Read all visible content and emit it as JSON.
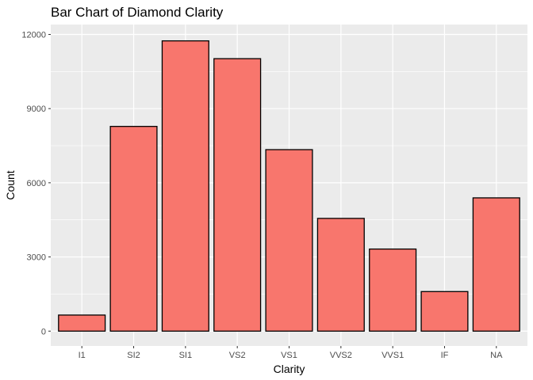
{
  "chart_data": {
    "type": "bar",
    "title": "Bar Chart of Diamond Clarity",
    "xlabel": "Clarity",
    "ylabel": "Count",
    "categories": [
      "I1",
      "SI2",
      "SI1",
      "VS2",
      "VS1",
      "VVS2",
      "VVS1",
      "IF",
      "NA"
    ],
    "values": [
      650,
      8280,
      11740,
      11020,
      7340,
      4560,
      3320,
      1600,
      5390
    ],
    "ylim": [
      -600,
      12400
    ],
    "yticks": [
      0,
      3000,
      6000,
      9000,
      12000
    ],
    "ytick_labels": [
      "0",
      "3000",
      "6000",
      "9000",
      "12000"
    ],
    "grid": true,
    "legend": "none",
    "bar_fill": "#f8766d",
    "bar_stroke": "#000000",
    "panel_background": "#ebebeb",
    "grid_color": "#ffffff"
  }
}
